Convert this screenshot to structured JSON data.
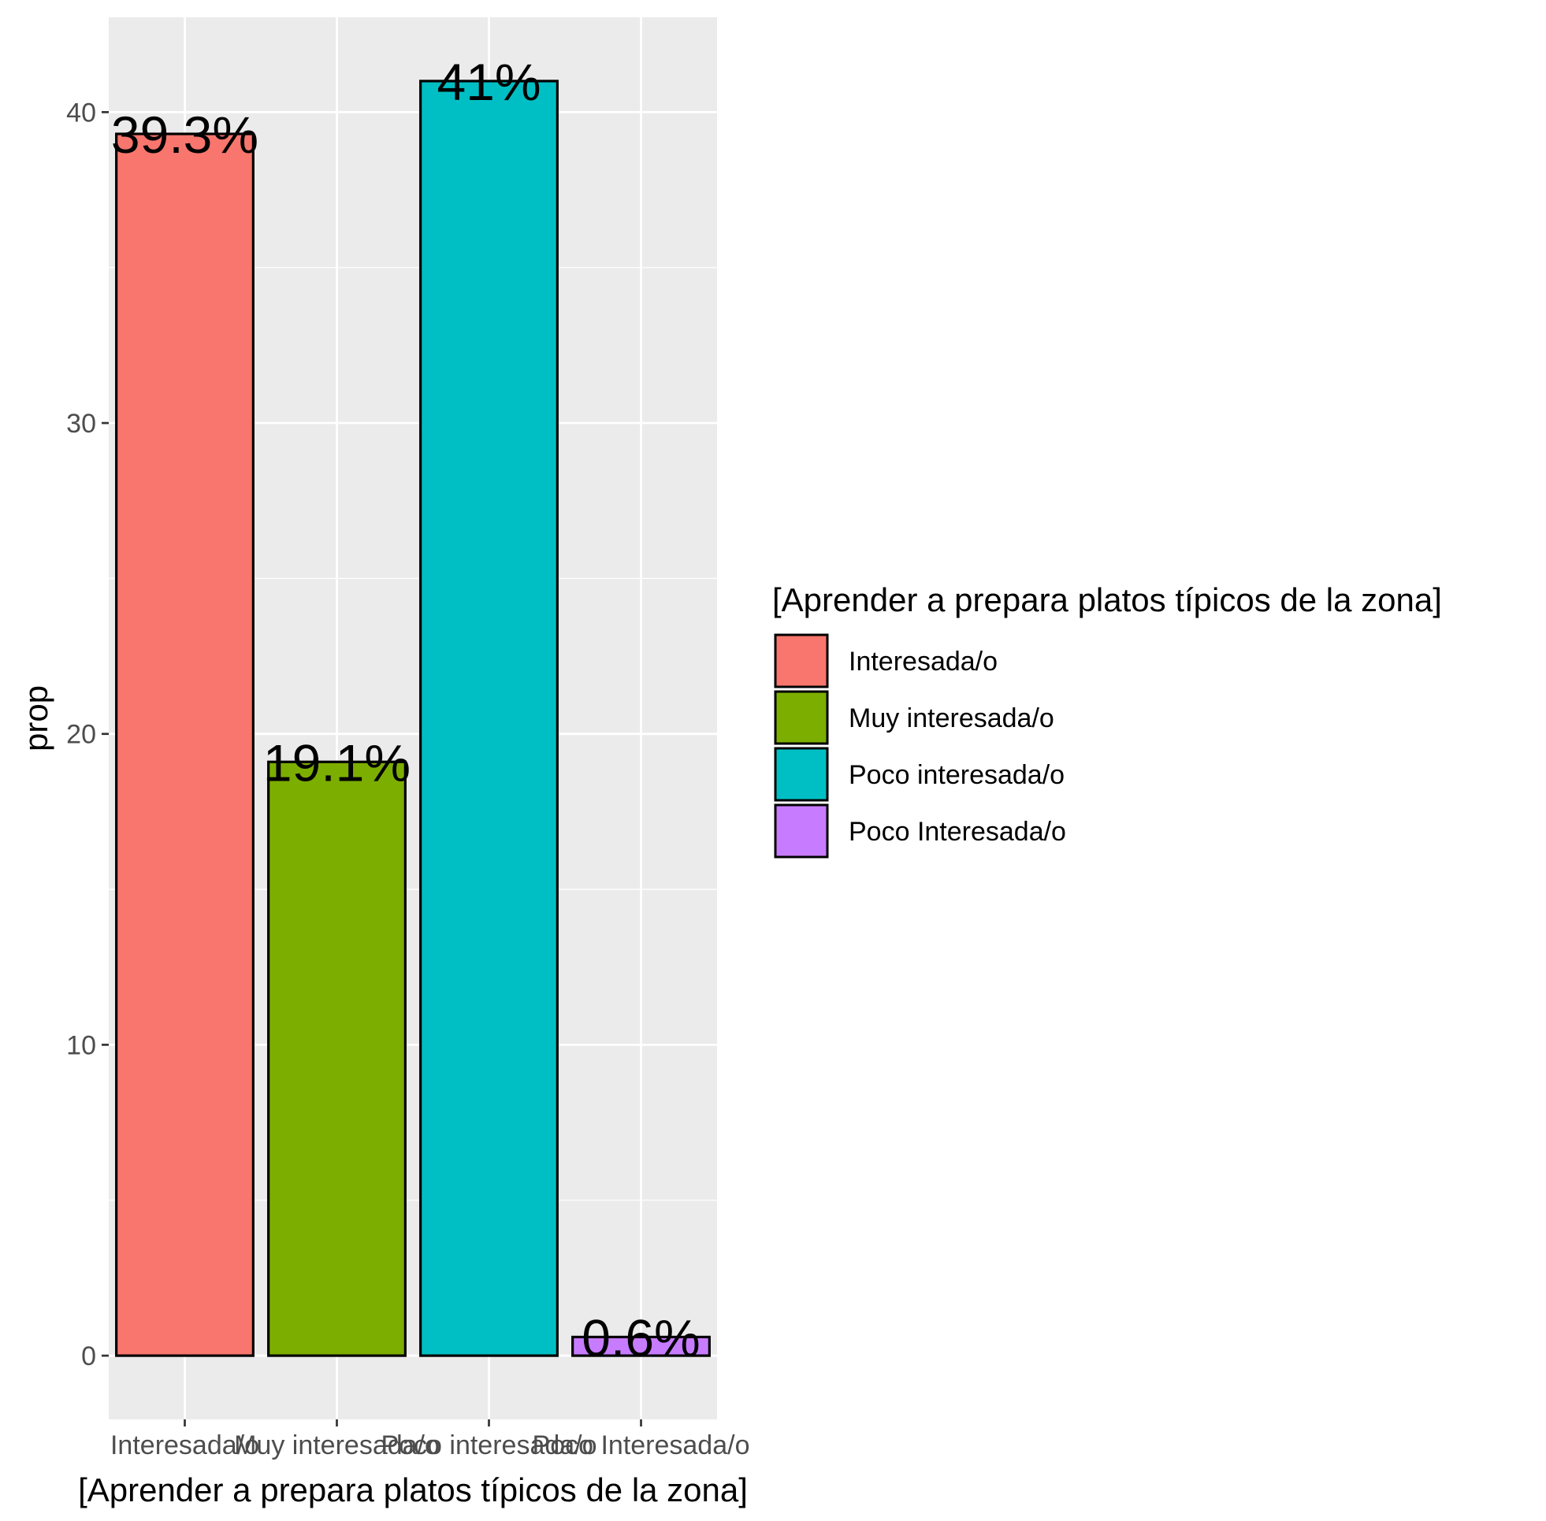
{
  "chart_data": {
    "type": "bar",
    "categories": [
      "Interesada/o",
      "Muy interesada/o",
      "Poco interesada/o",
      "Poco Interesada/o"
    ],
    "values": [
      39.3,
      19.1,
      41.0,
      0.6
    ],
    "data_labels": [
      "39.3%",
      "19.1%",
      "41%",
      "0.6%"
    ],
    "colors": [
      "#F8766D",
      "#7CAE00",
      "#00BFC4",
      "#C77CFF"
    ],
    "xlabel": "[Aprender a prepara platos típicos de la zona]",
    "ylabel": "prop",
    "ylim": [
      -2.05,
      43.05
    ],
    "yticks": [
      0,
      10,
      20,
      30,
      40
    ],
    "grid": true,
    "legend": {
      "title": "[Aprender a prepara platos típicos de la zona]",
      "placement": "right",
      "entries": [
        "Interesada/o",
        "Muy interesada/o",
        "Poco interesada/o",
        "Poco Interesada/o"
      ]
    }
  }
}
